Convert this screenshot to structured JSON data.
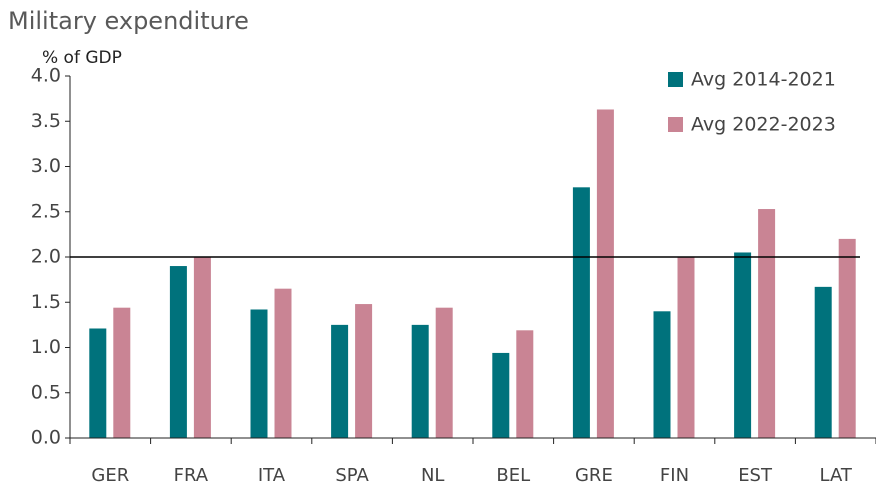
{
  "chart_data": {
    "type": "bar",
    "title": "Military expenditure",
    "y_label": "% of GDP",
    "categories": [
      "GER",
      "FRA",
      "ITA",
      "SPA",
      "NL",
      "BEL",
      "GRE",
      "FIN",
      "EST",
      "LAT"
    ],
    "series": [
      {
        "name": "Avg 2014-2021",
        "color": "#00727c",
        "values": [
          1.21,
          1.9,
          1.42,
          1.25,
          1.25,
          0.94,
          2.77,
          1.4,
          2.05,
          1.67
        ]
      },
      {
        "name": "Avg 2022-2023",
        "color": "#c98494",
        "values": [
          1.44,
          2.0,
          1.65,
          1.48,
          1.44,
          1.19,
          3.63,
          2.0,
          2.53,
          2.2
        ]
      }
    ],
    "ylim": [
      0,
      4
    ],
    "yticks": [
      {
        "value": 0,
        "label": "0.0"
      },
      0.5,
      {
        "value": 1,
        "label": "1.0"
      },
      1.5,
      {
        "value": 2,
        "label": "2.0"
      },
      2.5,
      {
        "value": 3,
        "label": "3.0"
      },
      3.5,
      {
        "value": 4,
        "label": "4.0"
      }
    ],
    "reference_line": 2,
    "legend": "top-right"
  }
}
